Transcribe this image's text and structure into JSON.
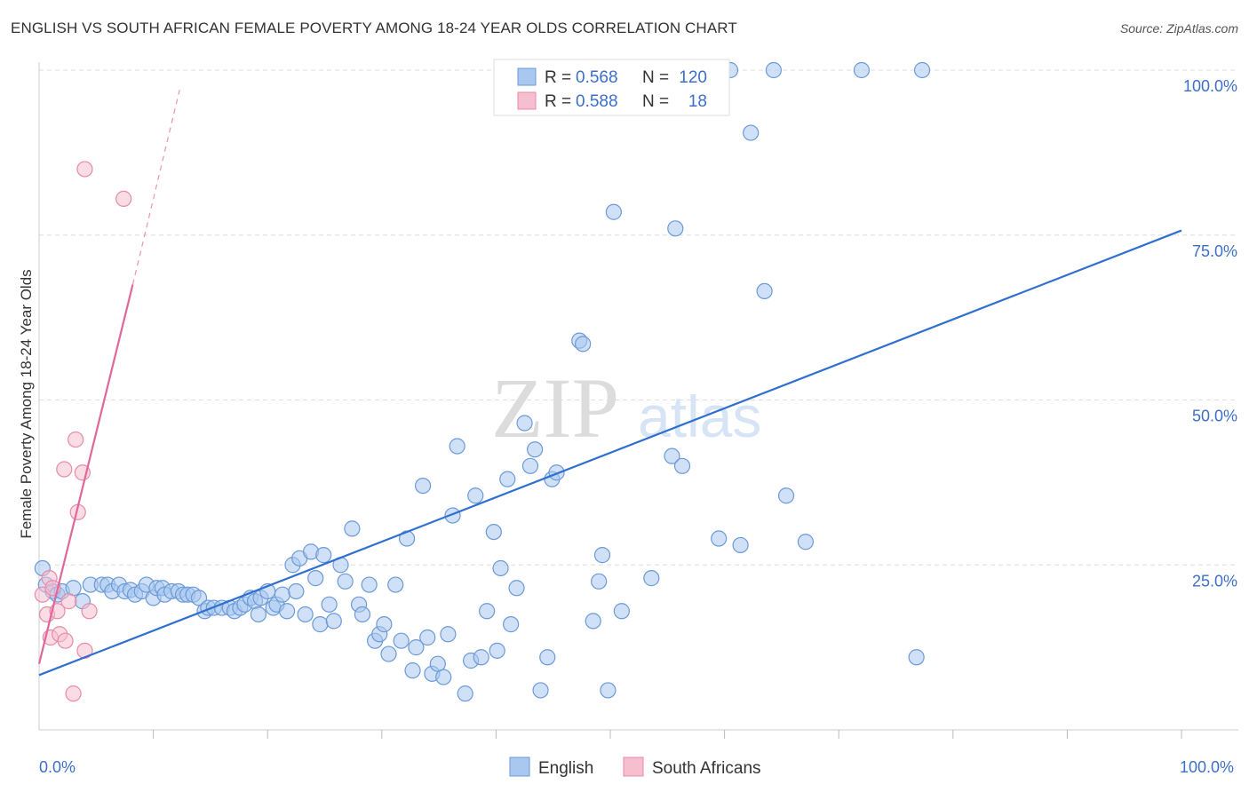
{
  "title": "ENGLISH VS SOUTH AFRICAN FEMALE POVERTY AMONG 18-24 YEAR OLDS CORRELATION CHART",
  "source": "Source: ZipAtlas.com",
  "watermark": {
    "zip": "ZIP",
    "atlas": "atlas"
  },
  "colors": {
    "english_fill": "#a9c8f0",
    "english_stroke": "#6b9ad8",
    "english_line": "#2f6fd0",
    "sa_fill": "#f6bfd0",
    "sa_stroke": "#e88aa8",
    "sa_line": "#e0679a",
    "value_text": "#3d6fc9",
    "grid": "#dddddd"
  },
  "stats_legend": {
    "rows": [
      {
        "r_label": "R =",
        "r_value": "0.568",
        "n_label": "N =",
        "n_value": "120"
      },
      {
        "r_label": "R =",
        "r_value": "0.588",
        "n_label": "N =",
        "n_value": "18"
      }
    ]
  },
  "bottom_legend": [
    "English",
    "South Africans"
  ],
  "chart_data": {
    "type": "scatter",
    "title": "ENGLISH VS SOUTH AFRICAN FEMALE POVERTY AMONG 18-24 YEAR OLDS CORRELATION CHART",
    "xlabel": "",
    "ylabel": "Female Poverty Among 18-24 Year Olds",
    "xlim": [
      0,
      100
    ],
    "ylim": [
      0,
      102
    ],
    "x_tick_labels": [
      "0.0%",
      "100.0%"
    ],
    "y_ticks": [
      25,
      50,
      75,
      100
    ],
    "y_tick_labels": [
      "25.0%",
      "50.0%",
      "75.0%",
      "100.0%"
    ],
    "grid": true,
    "legend_position": "bottom",
    "series": [
      {
        "name": "English",
        "r": 0.568,
        "n": 120,
        "trend": {
          "x": [
            0,
            100
          ],
          "y": [
            8.3,
            75.7
          ]
        },
        "points": [
          [
            0.3,
            24.5
          ],
          [
            0.6,
            22
          ],
          [
            1.2,
            21
          ],
          [
            1.6,
            20.5
          ],
          [
            2,
            21
          ],
          [
            3,
            21.5
          ],
          [
            3.8,
            19.5
          ],
          [
            4.5,
            22
          ],
          [
            5.5,
            22
          ],
          [
            6,
            22
          ],
          [
            6.4,
            21
          ],
          [
            7,
            22
          ],
          [
            7.5,
            21
          ],
          [
            8,
            21.2
          ],
          [
            8.4,
            20.5
          ],
          [
            9,
            21
          ],
          [
            9.4,
            22
          ],
          [
            10,
            20
          ],
          [
            10.3,
            21.5
          ],
          [
            10.8,
            21.5
          ],
          [
            11,
            20.5
          ],
          [
            11.6,
            21
          ],
          [
            12.2,
            21
          ],
          [
            12.6,
            20.5
          ],
          [
            13,
            20.5
          ],
          [
            13.5,
            20.5
          ],
          [
            14,
            20
          ],
          [
            14.5,
            18
          ],
          [
            14.8,
            18.5
          ],
          [
            15.3,
            18.5
          ],
          [
            16,
            18.5
          ],
          [
            16.7,
            18.5
          ],
          [
            17.1,
            18
          ],
          [
            17.6,
            18.5
          ],
          [
            18,
            19
          ],
          [
            18.5,
            20
          ],
          [
            18.9,
            19.5
          ],
          [
            19.2,
            17.5
          ],
          [
            19.4,
            20
          ],
          [
            20,
            21
          ],
          [
            20.5,
            18.5
          ],
          [
            20.8,
            19
          ],
          [
            21.3,
            20.5
          ],
          [
            21.7,
            18
          ],
          [
            22.2,
            25
          ],
          [
            22.5,
            21
          ],
          [
            22.8,
            26
          ],
          [
            23.3,
            17.5
          ],
          [
            23.8,
            27
          ],
          [
            24.2,
            23
          ],
          [
            24.6,
            16
          ],
          [
            24.9,
            26.5
          ],
          [
            25.4,
            19
          ],
          [
            25.8,
            16.5
          ],
          [
            26.4,
            25
          ],
          [
            26.8,
            22.5
          ],
          [
            27.4,
            30.5
          ],
          [
            28,
            19
          ],
          [
            28.3,
            17.5
          ],
          [
            28.9,
            22
          ],
          [
            29.4,
            13.5
          ],
          [
            29.8,
            14.5
          ],
          [
            30.2,
            16
          ],
          [
            30.6,
            11.5
          ],
          [
            31.2,
            22
          ],
          [
            31.7,
            13.5
          ],
          [
            32.2,
            29
          ],
          [
            32.7,
            9
          ],
          [
            33,
            12.5
          ],
          [
            33.6,
            37
          ],
          [
            34,
            14
          ],
          [
            34.4,
            8.5
          ],
          [
            34.9,
            10
          ],
          [
            35.4,
            8
          ],
          [
            35.8,
            14.5
          ],
          [
            36.2,
            32.5
          ],
          [
            36.6,
            43
          ],
          [
            37.3,
            5.5
          ],
          [
            37.8,
            10.5
          ],
          [
            38.2,
            35.5
          ],
          [
            38.7,
            11
          ],
          [
            39.2,
            18
          ],
          [
            39.8,
            30
          ],
          [
            40.1,
            12
          ],
          [
            40.4,
            24.5
          ],
          [
            41,
            38
          ],
          [
            41.3,
            16
          ],
          [
            41.8,
            21.5
          ],
          [
            42.5,
            46.5
          ],
          [
            43,
            40
          ],
          [
            43.4,
            42.5
          ],
          [
            43.9,
            6
          ],
          [
            44.5,
            11
          ],
          [
            44.9,
            38
          ],
          [
            45.3,
            39
          ],
          [
            47.3,
            59
          ],
          [
            47.6,
            58.5
          ],
          [
            48.5,
            16.5
          ],
          [
            49,
            22.5
          ],
          [
            49.3,
            26.5
          ],
          [
            49.8,
            6
          ],
          [
            50.3,
            78.5
          ],
          [
            51,
            18
          ],
          [
            53.6,
            23
          ],
          [
            55.4,
            41.5
          ],
          [
            55.7,
            76
          ],
          [
            56.3,
            40
          ],
          [
            59.5,
            29
          ],
          [
            61.4,
            28
          ],
          [
            62.3,
            90.5
          ],
          [
            63.5,
            66.5
          ],
          [
            65.4,
            35.5
          ],
          [
            67.1,
            28.5
          ],
          [
            76.8,
            11
          ],
          [
            49.5,
            100
          ],
          [
            59,
            100
          ],
          [
            60.5,
            100
          ],
          [
            64.3,
            100
          ],
          [
            72,
            100
          ],
          [
            77.3,
            100
          ]
        ]
      },
      {
        "name": "South Africans",
        "r": 0.588,
        "n": 18,
        "trend": {
          "x": [
            0,
            8.2
          ],
          "y": [
            10,
            67.5
          ]
        },
        "trend_dashed": {
          "x": [
            8.2,
            12.3
          ],
          "y": [
            67.5,
            97
          ]
        },
        "points": [
          [
            0.3,
            20.5
          ],
          [
            0.7,
            17.5
          ],
          [
            0.9,
            23
          ],
          [
            1,
            14
          ],
          [
            1.2,
            21.5
          ],
          [
            1.6,
            18
          ],
          [
            1.8,
            14.5
          ],
          [
            2.3,
            13.5
          ],
          [
            2.6,
            19.5
          ],
          [
            3,
            5.5
          ],
          [
            3.2,
            44
          ],
          [
            3.4,
            33
          ],
          [
            3.8,
            39
          ],
          [
            4,
            12
          ],
          [
            4.4,
            18
          ],
          [
            2.2,
            39.5
          ],
          [
            4,
            85
          ],
          [
            7.4,
            80.5
          ]
        ]
      }
    ]
  }
}
